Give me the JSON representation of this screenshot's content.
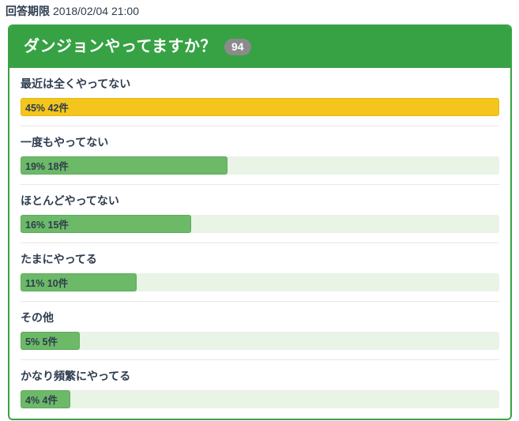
{
  "deadline": {
    "label": "回答期限",
    "value": "2018/02/04 21:00"
  },
  "poll": {
    "title": "ダンジョンやってますか？",
    "total_votes": "94",
    "options": [
      {
        "label": "最近は全くやってない",
        "stat": "45% 42件",
        "percent": 45,
        "count": 42,
        "bar_width_pct": 100,
        "highlight": true
      },
      {
        "label": "一度もやってない",
        "stat": "19% 18件",
        "percent": 19,
        "count": 18,
        "bar_width_pct": 43.3,
        "highlight": false
      },
      {
        "label": "ほとんどやってない",
        "stat": "16% 15件",
        "percent": 16,
        "count": 15,
        "bar_width_pct": 35.6,
        "highlight": false
      },
      {
        "label": "たまにやってる",
        "stat": "11% 10件",
        "percent": 11,
        "count": 10,
        "bar_width_pct": 24.3,
        "highlight": false
      },
      {
        "label": "その他",
        "stat": "5% 5件",
        "percent": 5,
        "count": 5,
        "bar_width_pct": 12.3,
        "highlight": false
      },
      {
        "label": "かなり頻繁にやってる",
        "stat": "4% 4件",
        "percent": 4,
        "count": 4,
        "bar_width_pct": 10.4,
        "highlight": false
      }
    ]
  },
  "colors": {
    "accent_green": "#37a244",
    "highlight_yellow": "#f4c51d",
    "bar_green": "#6cb967",
    "bar_track": "#e9f3e6",
    "badge_gray": "#8b8b8b",
    "text_dark": "#2e3d4f",
    "divider": "#e7e7e7"
  },
  "chart_data": {
    "type": "bar",
    "orientation": "horizontal",
    "title": "ダンジョンやってますか？",
    "total_responses": 94,
    "deadline": "2018/02/04 21:00",
    "categories": [
      "最近は全くやってない",
      "一度もやってない",
      "ほとんどやってない",
      "たまにやってる",
      "その他",
      "かなり頻繁にやってる"
    ],
    "series": [
      {
        "name": "percent",
        "values": [
          45,
          19,
          16,
          11,
          5,
          4
        ]
      },
      {
        "name": "count",
        "values": [
          42,
          18,
          15,
          10,
          5,
          4
        ]
      }
    ],
    "data_labels": [
      "45% 42件",
      "19% 18件",
      "16% 15件",
      "11% 10件",
      "5% 5件",
      "4% 4件"
    ],
    "bar_scaling": "width relative to max value (45% = full track width)",
    "highlight_index": 0,
    "grid": false,
    "legend": false
  }
}
